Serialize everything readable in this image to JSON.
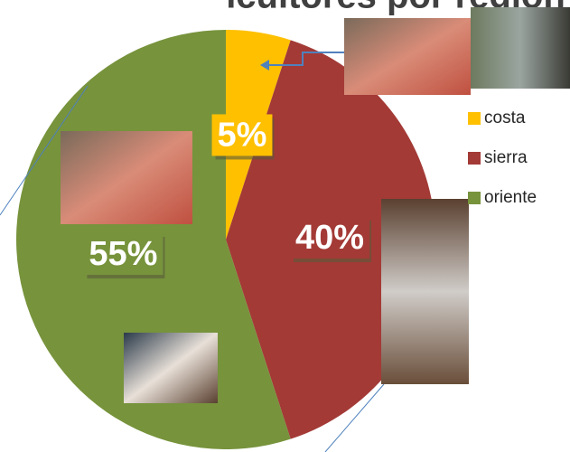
{
  "chart_data": {
    "type": "pie",
    "title": "icultores por región",
    "categories": [
      "costa",
      "sierra",
      "oriente"
    ],
    "values": [
      5,
      40,
      55
    ],
    "value_labels": [
      "5%",
      "40%",
      "55%"
    ],
    "colors": [
      "#ffc000",
      "#a33a36",
      "#77933c"
    ]
  }
}
